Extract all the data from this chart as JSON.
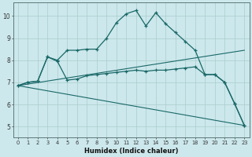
{
  "bg_color": "#cce8ec",
  "grid_color": "#aacccc",
  "line_color": "#1a6868",
  "xlabel": "Humidex (Indice chaleur)",
  "xlim": [
    -0.5,
    23.5
  ],
  "ylim": [
    4.5,
    10.6
  ],
  "yticks": [
    5,
    6,
    7,
    8,
    9,
    10
  ],
  "xticks": [
    0,
    1,
    2,
    3,
    4,
    5,
    6,
    7,
    8,
    9,
    10,
    11,
    12,
    13,
    14,
    15,
    16,
    17,
    18,
    19,
    20,
    21,
    22,
    23
  ],
  "curve1_x": [
    0,
    1,
    2,
    3,
    4,
    5,
    6,
    7,
    8,
    9,
    10,
    11,
    12,
    13,
    14,
    15,
    16,
    17,
    18,
    19,
    20,
    21,
    22,
    23
  ],
  "curve1_y": [
    6.85,
    7.0,
    7.05,
    8.15,
    8.0,
    8.45,
    8.45,
    8.5,
    8.5,
    9.0,
    9.7,
    10.1,
    10.25,
    9.55,
    10.15,
    9.65,
    9.25,
    8.85,
    8.45,
    7.35,
    7.35,
    7.0,
    6.05,
    5.05
  ],
  "curve2_x": [
    0,
    1,
    2,
    3,
    4,
    5,
    6,
    7,
    8,
    9,
    10,
    11,
    12,
    13,
    14,
    15,
    16,
    17,
    18,
    19,
    20,
    21,
    22,
    23
  ],
  "curve2_y": [
    6.85,
    7.0,
    7.05,
    8.15,
    7.95,
    7.1,
    7.15,
    7.3,
    7.35,
    7.4,
    7.45,
    7.5,
    7.55,
    7.5,
    7.55,
    7.55,
    7.6,
    7.65,
    7.7,
    7.35,
    7.35,
    7.0,
    6.05,
    5.05
  ],
  "line3_x": [
    0,
    23
  ],
  "line3_y": [
    6.85,
    8.45
  ],
  "line4_x": [
    0,
    23
  ],
  "line4_y": [
    6.85,
    5.05
  ]
}
